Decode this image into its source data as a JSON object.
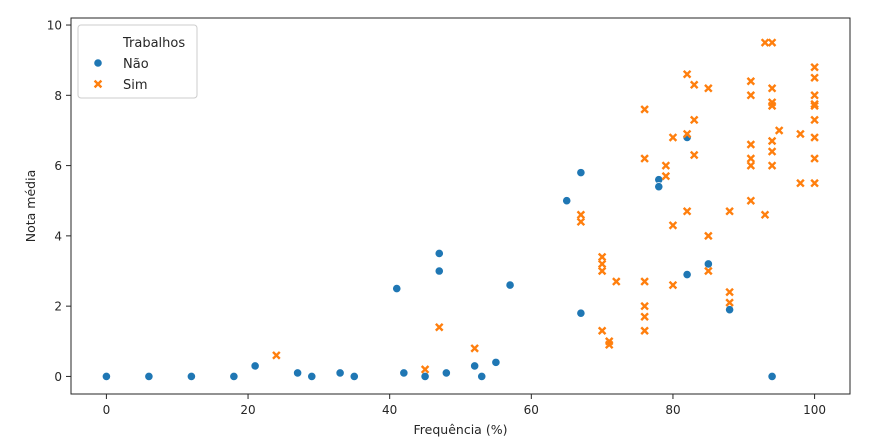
{
  "chart_data": {
    "type": "scatter",
    "xlabel": "Frequência (%)",
    "ylabel": "Nota média",
    "xlim": [
      -5,
      105
    ],
    "ylim": [
      -0.5,
      10.2
    ],
    "xticks": [
      0,
      20,
      40,
      60,
      80,
      100
    ],
    "yticks": [
      0,
      2,
      4,
      6,
      8,
      10
    ],
    "grid": false,
    "legend": {
      "placement": "top-left",
      "title": "Trabalhos"
    },
    "series": [
      {
        "name": "Não",
        "color": "#1f77b4",
        "marker": "circle",
        "x": [
          0,
          6,
          12,
          18,
          21,
          27,
          29,
          33,
          35,
          41,
          42,
          45,
          47,
          47,
          48,
          52,
          53,
          55,
          57,
          65,
          67,
          67,
          78,
          78,
          82,
          82,
          85,
          88,
          94
        ],
        "y": [
          0,
          0,
          0,
          0,
          0.3,
          0.1,
          0,
          0.1,
          0,
          2.5,
          0.1,
          0,
          3.5,
          3.0,
          0.1,
          0.3,
          0,
          0.4,
          2.6,
          5.0,
          5.8,
          1.8,
          5.6,
          5.4,
          6.8,
          2.9,
          3.2,
          1.9,
          0
        ]
      },
      {
        "name": "Sim",
        "color": "#ff7f0e",
        "marker": "x",
        "x": [
          24,
          45,
          47,
          52,
          67,
          67,
          70,
          70,
          70,
          70,
          71,
          71,
          72,
          76,
          76,
          76,
          76,
          76,
          76,
          79,
          79,
          80,
          80,
          80,
          82,
          82,
          82,
          83,
          83,
          83,
          85,
          85,
          85,
          88,
          88,
          88,
          91,
          91,
          91,
          91,
          91,
          91,
          93,
          93,
          94,
          94,
          94,
          94,
          94,
          94,
          94,
          95,
          98,
          98,
          100,
          100,
          100,
          100,
          100,
          100,
          100,
          100,
          100
        ],
        "y": [
          0.6,
          0.2,
          1.4,
          0.8,
          4.6,
          4.4,
          3.4,
          3.2,
          3.0,
          1.3,
          1.0,
          0.9,
          2.7,
          7.6,
          6.2,
          2.7,
          2.0,
          1.7,
          1.3,
          6.0,
          5.7,
          6.8,
          4.3,
          2.6,
          8.6,
          6.9,
          4.7,
          8.3,
          7.3,
          6.3,
          8.2,
          4.0,
          3.0,
          4.7,
          2.4,
          2.1,
          8.4,
          8.0,
          6.6,
          6.2,
          6.0,
          5.0,
          9.5,
          4.6,
          9.5,
          8.2,
          7.8,
          7.7,
          6.7,
          6.4,
          6.0,
          7.0,
          6.9,
          5.5,
          8.8,
          8.5,
          8.0,
          7.7,
          7.3,
          6.8,
          6.2,
          5.5,
          7.75
        ]
      }
    ]
  }
}
